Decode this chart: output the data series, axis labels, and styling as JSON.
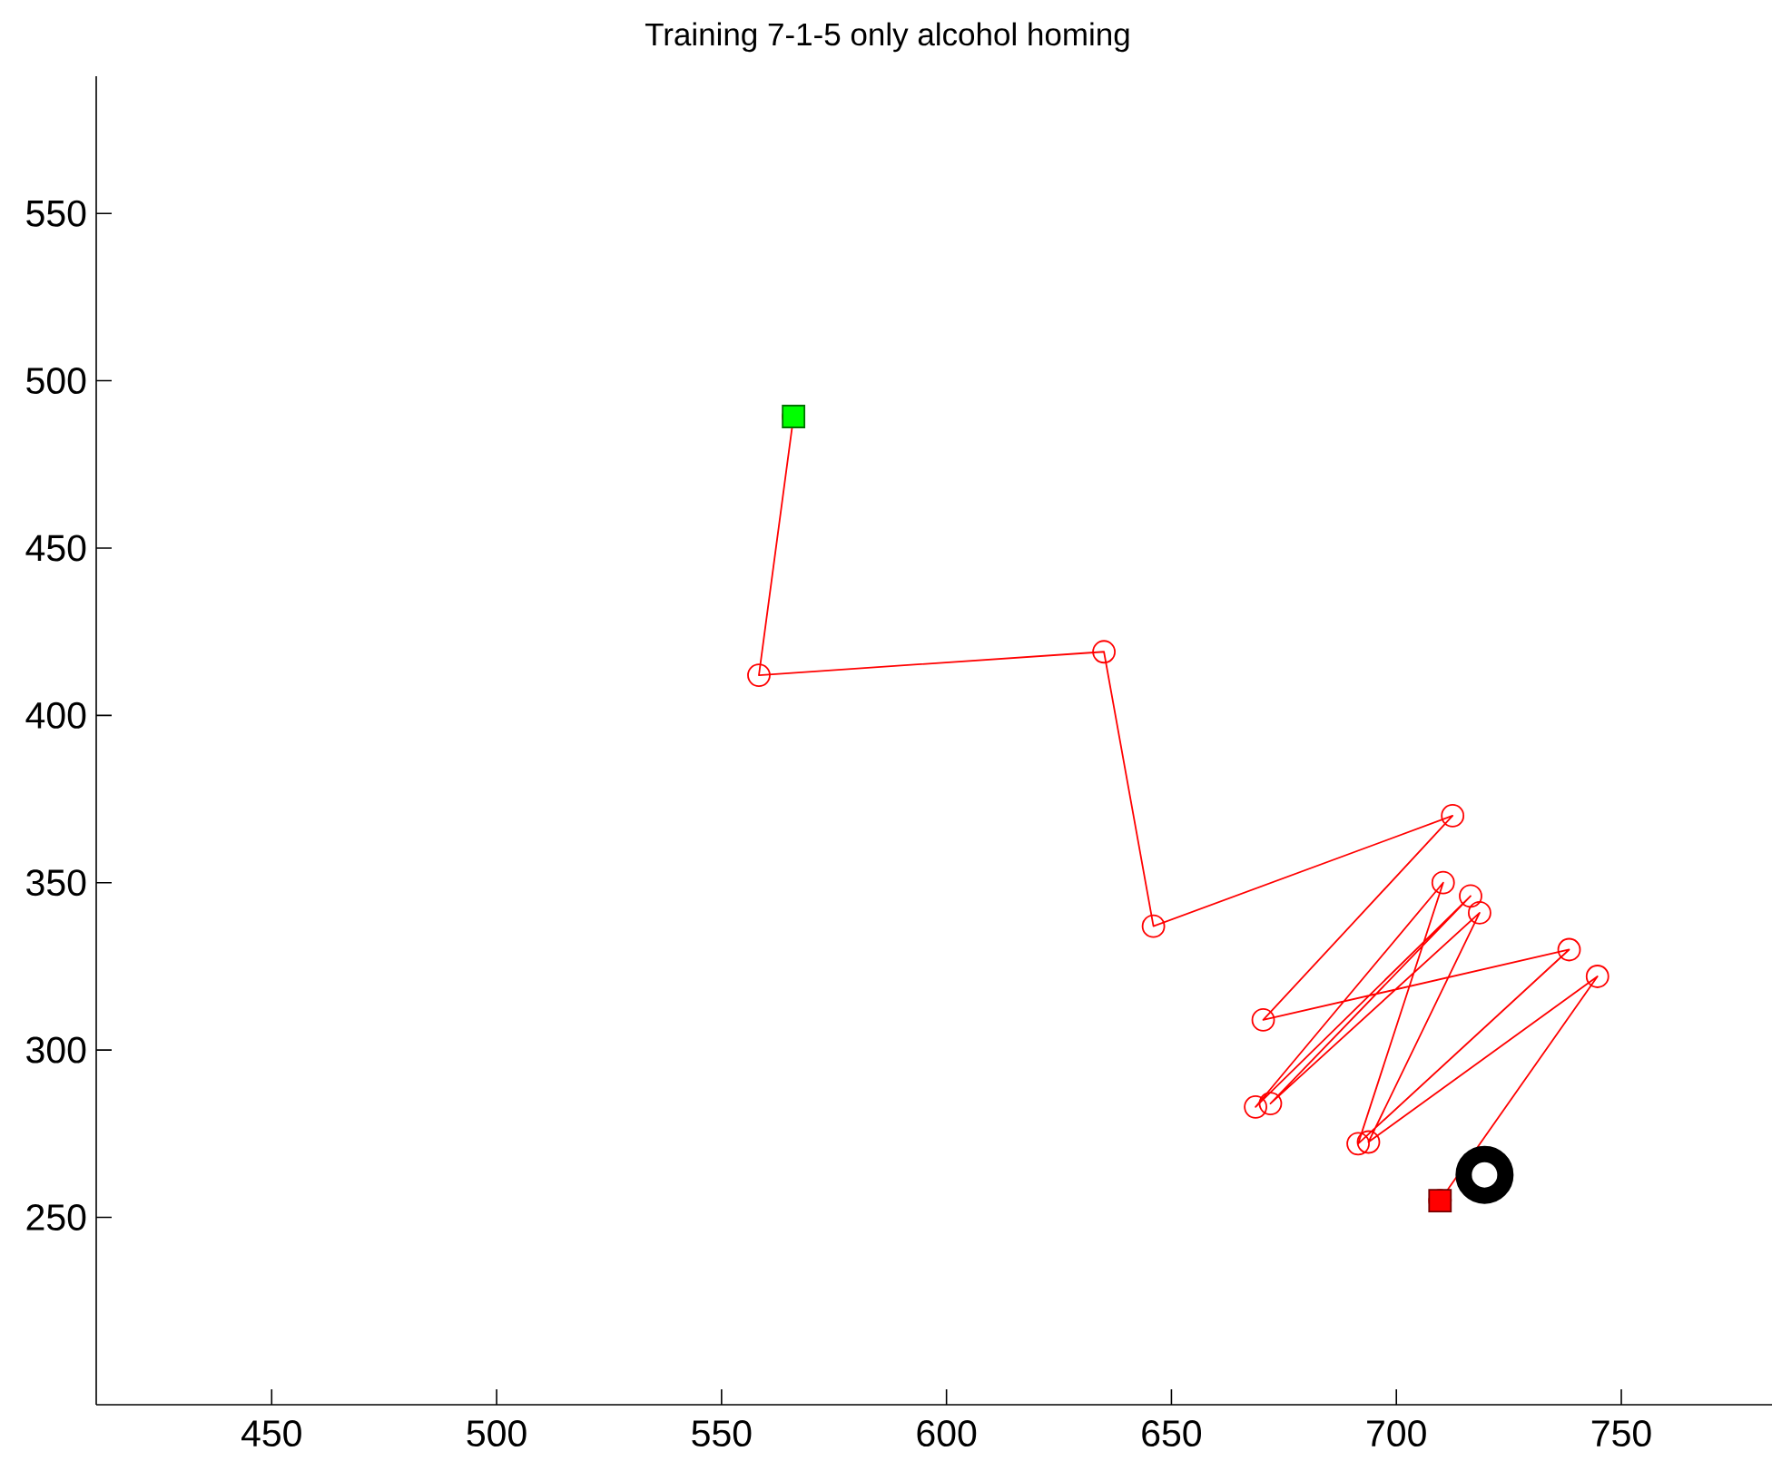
{
  "chart_data": {
    "type": "line",
    "title": "Training 7-1-5 only alcohol homing",
    "xlim": [
      411,
      783.5
    ],
    "ylim": [
      194,
      591
    ],
    "xticks": [
      450,
      500,
      550,
      600,
      650,
      700,
      750
    ],
    "yticks": [
      250,
      300,
      350,
      400,
      450,
      500,
      550
    ],
    "series": [
      {
        "type": "line",
        "color": "#ff0000",
        "marker": "circle",
        "x": [
          566,
          558.3,
          635,
          646,
          712.5,
          670.4,
          738.4,
          691.5,
          710.4,
          668.7,
          716.5,
          672,
          718.5,
          693.8,
          744.7,
          709.7
        ],
        "values": [
          489.3,
          412,
          419,
          337,
          370,
          309,
          330,
          272,
          350,
          283,
          346,
          284,
          341,
          272.5,
          322,
          255
        ]
      },
      {
        "type": "scatter",
        "color": "#00ff00",
        "marker": "square",
        "x": [
          566
        ],
        "values": [
          489.3
        ]
      },
      {
        "type": "scatter",
        "color": "#ff0000",
        "marker": "square",
        "x": [
          709.7
        ],
        "values": [
          255
        ]
      },
      {
        "type": "scatter",
        "color": "#000000",
        "marker": "circle",
        "x": [
          719.6
        ],
        "values": [
          262.7
        ]
      }
    ]
  }
}
